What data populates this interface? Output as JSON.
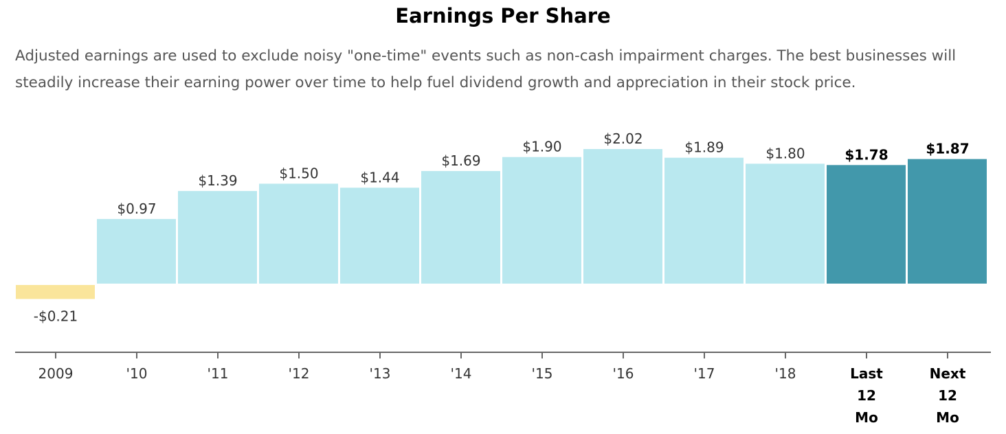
{
  "chart_data": {
    "type": "bar",
    "title": "Earnings Per Share",
    "subtitle": "Adjusted earnings are used to exclude noisy \"one-time\" events such as non-cash impairment charges. The best businesses will steadily increase their earning power over time to help fuel dividend growth and appreciation in their stock price.",
    "categories": [
      "2009",
      "'10",
      "'11",
      "'12",
      "'13",
      "'14",
      "'15",
      "'16",
      "'17",
      "'18",
      "Last 12 Mo",
      "Next 12 Mo"
    ],
    "values": [
      -0.21,
      0.97,
      1.39,
      1.5,
      1.44,
      1.69,
      1.9,
      2.02,
      1.89,
      1.8,
      1.78,
      1.87
    ],
    "labels": [
      "-$0.21",
      "$0.97",
      "$1.39",
      "$1.50",
      "$1.44",
      "$1.69",
      "$1.90",
      "$2.02",
      "$1.89",
      "$1.80",
      "$1.78",
      "$1.87"
    ],
    "highlighted": [
      false,
      false,
      false,
      false,
      false,
      false,
      false,
      false,
      false,
      false,
      true,
      true
    ],
    "xlabel": "",
    "ylabel": "",
    "ylim": [
      -1.03,
      2.02
    ],
    "grid": false,
    "colors": {
      "negative": "#fae59b",
      "positive": "#b9e8ef",
      "highlight": "#4298ab",
      "axis": "#666666"
    }
  }
}
